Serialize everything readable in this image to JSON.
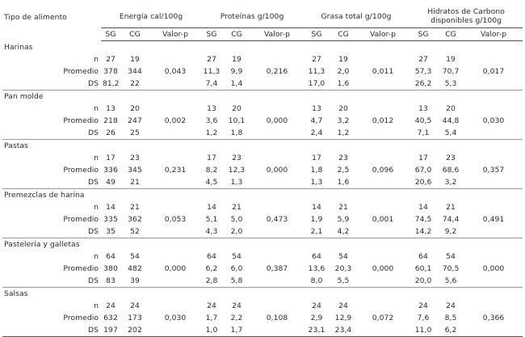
{
  "header": {
    "food_col": "Tipo de alimento",
    "groups": [
      "Energía cal/100g",
      "Proteínas g/100g",
      "Grasa total g/100g",
      "Hidratos de Carbono disponibles g/100g"
    ],
    "sub": [
      "SG",
      "CG",
      "Valor-p"
    ]
  },
  "row_labels": {
    "n": "n",
    "mean": "Promedio",
    "sd": "DS"
  },
  "categories": [
    {
      "name": "Harinas",
      "n": [
        "27",
        "19",
        "",
        "27",
        "19",
        "",
        "27",
        "19",
        "",
        "27",
        "19",
        ""
      ],
      "mean": [
        "378",
        "344",
        "0,043",
        "11,3",
        "9,9",
        "0,216",
        "11,3",
        "2,0",
        "0,011",
        "57,3",
        "70,7",
        "0,017"
      ],
      "sd": [
        "81,2",
        "22",
        "",
        "7,4",
        "1,4",
        "",
        "17,0",
        "1,6",
        "",
        "26,2",
        "5,3",
        ""
      ]
    },
    {
      "name": "Pan molde",
      "n": [
        "13",
        "20",
        "",
        "13",
        "20",
        "",
        "13",
        "20",
        "",
        "13",
        "20",
        ""
      ],
      "mean": [
        "218",
        "247",
        "0,002",
        "3,6",
        "10,1",
        "0,000",
        "4,7",
        "3,2",
        "0,012",
        "40,5",
        "44,8",
        "0,030"
      ],
      "sd": [
        "26",
        "25",
        "",
        "1,2",
        "1,8",
        "",
        "2,4",
        "1,2",
        "",
        "7,1",
        "5,4",
        ""
      ]
    },
    {
      "name": "Pastas",
      "n": [
        "17",
        "23",
        "",
        "17",
        "23",
        "",
        "17",
        "23",
        "",
        "17",
        "23",
        ""
      ],
      "mean": [
        "336",
        "345",
        "0,231",
        "8,2",
        "12,3",
        "0,000",
        "1,8",
        "2,5",
        "0,096",
        "67,0",
        "68,6",
        "0,357"
      ],
      "sd": [
        "49",
        "21",
        "",
        "4,5",
        "1,3",
        "",
        "1,3",
        "1,6",
        "",
        "20,6",
        "3,2",
        ""
      ]
    },
    {
      "name": "Premezclas de harina",
      "n": [
        "14",
        "21",
        "",
        "14",
        "21",
        "",
        "14",
        "21",
        "",
        "14",
        "21",
        ""
      ],
      "mean": [
        "335",
        "362",
        "0,053",
        "5,1",
        "5,0",
        "0,473",
        "1,9",
        "5,9",
        "0,001",
        "74,5",
        "74,4",
        "0,491"
      ],
      "sd": [
        "35",
        "52",
        "",
        "4,3",
        "2,0",
        "",
        "2,1",
        "4,2",
        "",
        "14,2",
        "9,2",
        ""
      ]
    },
    {
      "name": "Pastelería y galletas",
      "n": [
        "64",
        "54",
        "",
        "64",
        "54",
        "",
        "64",
        "54",
        "",
        "64",
        "54",
        ""
      ],
      "mean": [
        "380",
        "482",
        "0,000",
        "6,2",
        "6,0",
        "0,387",
        "13,6",
        "20,3",
        "0,000",
        "60,1",
        "70,5",
        "0,000"
      ],
      "sd": [
        "83",
        "39",
        "",
        "2,8",
        "5,8",
        "",
        "8,0",
        "5,5",
        "",
        "20,0",
        "5,6",
        ""
      ]
    },
    {
      "name": "Salsas",
      "n": [
        "24",
        "24",
        "",
        "24",
        "24",
        "",
        "24",
        "24",
        "",
        "24",
        "24",
        ""
      ],
      "mean": [
        "632",
        "173",
        "0,030",
        "1,7",
        "2,2",
        "0,108",
        "2,9",
        "12,9",
        "0,072",
        "7,6",
        "8,5",
        "0,366"
      ],
      "sd": [
        "197",
        "202",
        "",
        "1,0",
        "1,7",
        "",
        "23,1",
        "23,4",
        "",
        "11,0",
        "6,2",
        ""
      ]
    }
  ]
}
